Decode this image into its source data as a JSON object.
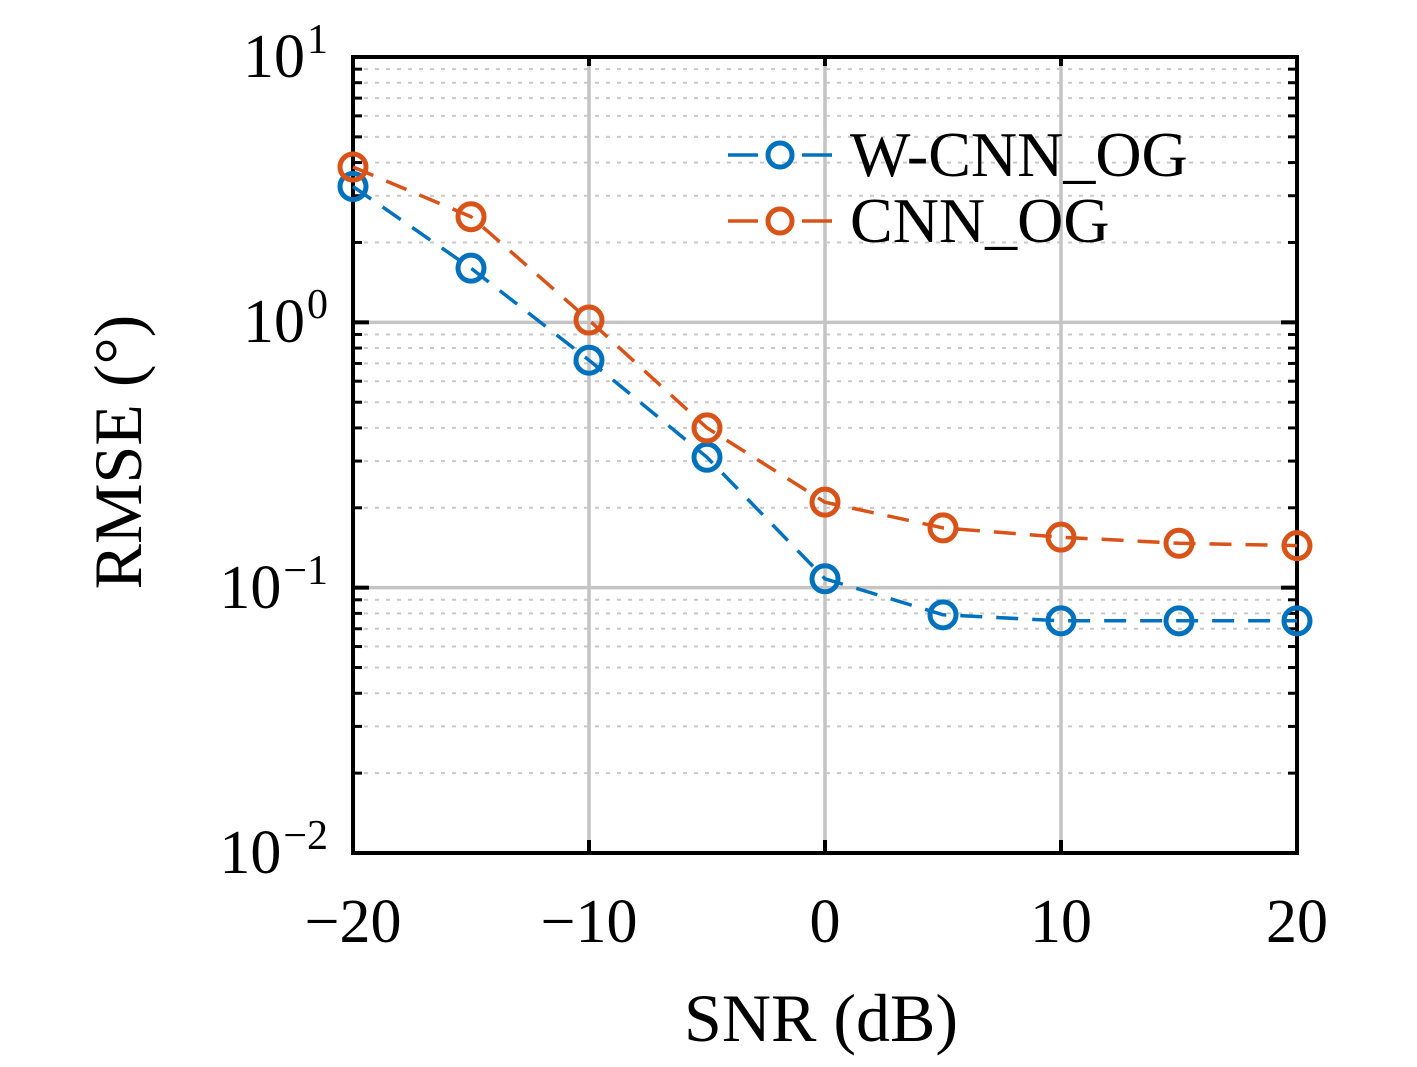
{
  "figure": {
    "background": "#ffffff"
  },
  "chart_data": {
    "type": "line",
    "title": "",
    "xlabel": "SNR (dB)",
    "ylabel": "RMSE (°)",
    "x_scale": "linear",
    "y_scale": "log",
    "xlim": [
      -20,
      20
    ],
    "ylim": [
      0.01,
      10
    ],
    "x": [
      -20,
      -15,
      -10,
      -5,
      0,
      5,
      10,
      15,
      20
    ],
    "series": [
      {
        "name": "W-CNN_OG",
        "color": "#0072BD",
        "linestyle": "dashed",
        "marker": "open-circle",
        "values": [
          3.25,
          1.6,
          0.72,
          0.31,
          0.108,
          0.079,
          0.075,
          0.075,
          0.075
        ]
      },
      {
        "name": "CNN_OG",
        "color": "#D95319",
        "linestyle": "dashed",
        "marker": "open-circle",
        "values": [
          3.85,
          2.5,
          1.02,
          0.4,
          0.21,
          0.168,
          0.155,
          0.147,
          0.144
        ]
      }
    ],
    "x_ticks": [
      {
        "value": -20,
        "label": "−20"
      },
      {
        "value": -10,
        "label": "−10"
      },
      {
        "value": 0,
        "label": "0"
      },
      {
        "value": 10,
        "label": "10"
      },
      {
        "value": 20,
        "label": "20"
      }
    ],
    "y_ticks": [
      {
        "log10": 1,
        "base": "10",
        "exp": "1"
      },
      {
        "log10": 0,
        "base": "10",
        "exp": "0"
      },
      {
        "log10": -1,
        "base": "10",
        "exp": "−1"
      },
      {
        "log10": -2,
        "base": "10",
        "exp": "−2"
      }
    ],
    "grid": {
      "major_style": "solid",
      "major_color": "#c4c4c4",
      "minor_style": "dotted",
      "minor_color": "#c9c9c9",
      "minor_axis": "y-only"
    },
    "legend": {
      "position": "upper right",
      "frame": false
    }
  }
}
